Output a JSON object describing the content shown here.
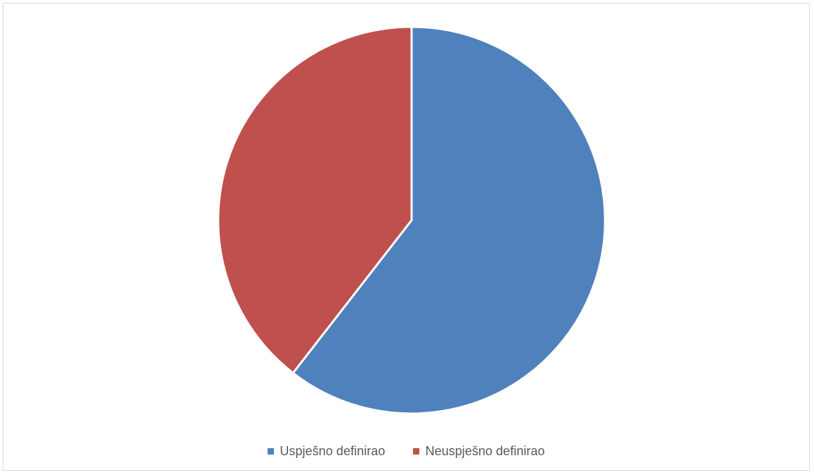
{
  "chart_data": {
    "type": "pie",
    "title": "",
    "legend_position": "bottom",
    "series": [
      {
        "name": "Uspješno definirao",
        "value": 60.5,
        "color": "#4F81BD"
      },
      {
        "name": "Neuspješno definirao",
        "value": 39.5,
        "color": "#C0504D"
      }
    ]
  }
}
